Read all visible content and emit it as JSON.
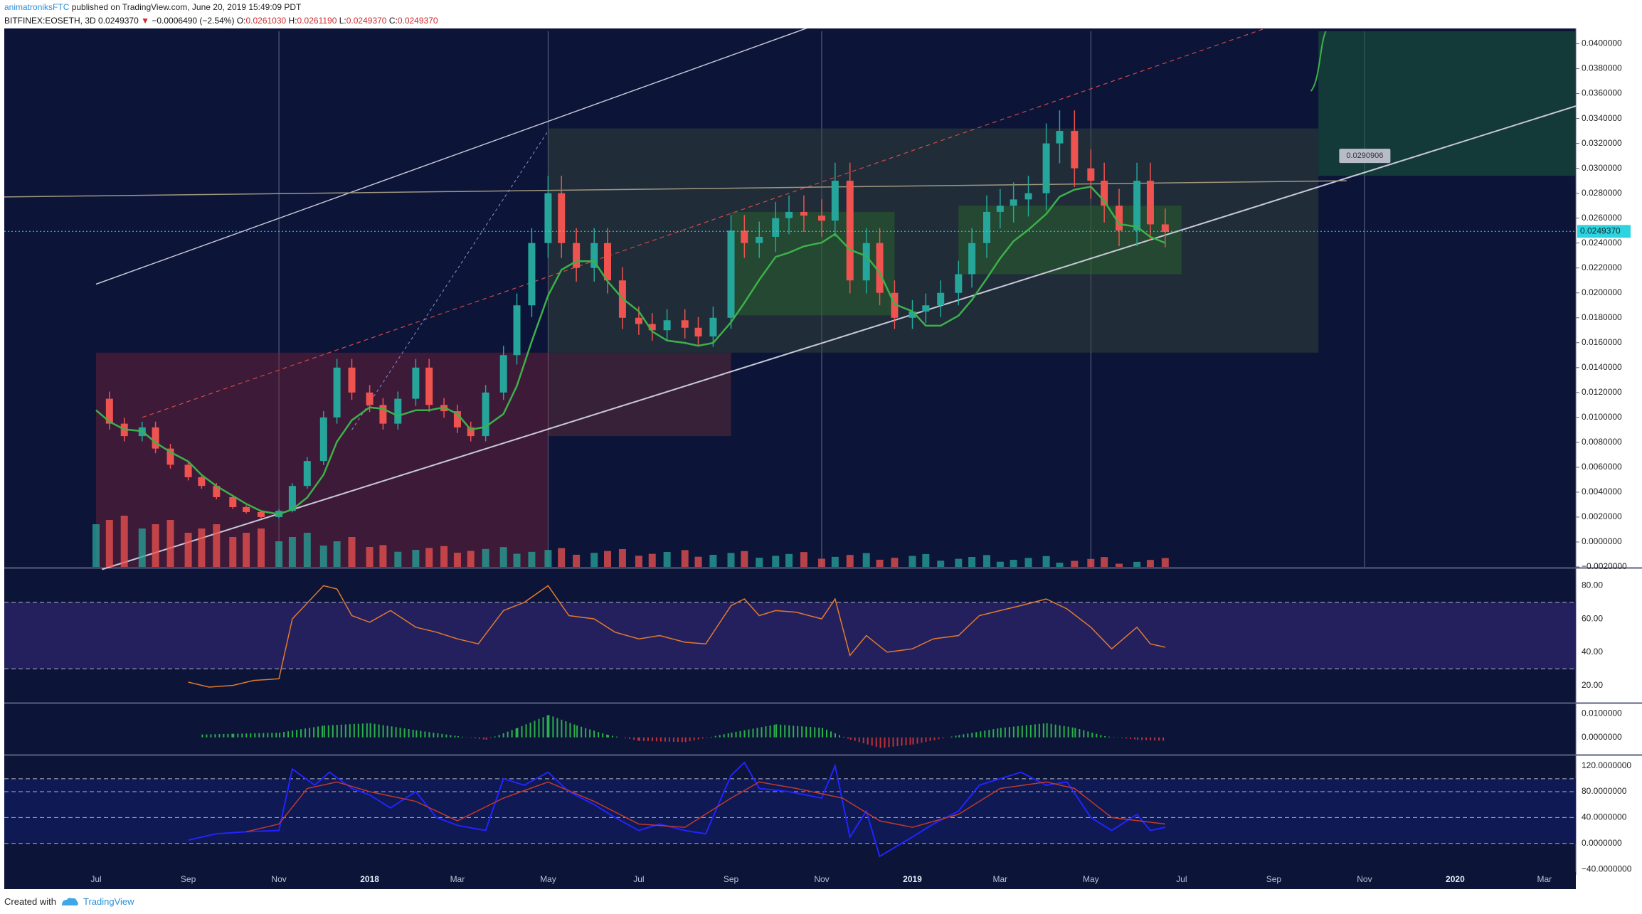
{
  "header": {
    "user": "animatroniksFTC",
    "published": "published on TradingView.com, June 20, 2019 15:49:09 PDT",
    "symbol": "BITFINEX:EOSETH, 3D",
    "last": "0.0249370",
    "change": "−0.0006490 (−2.54%)",
    "o_label": "O:",
    "o": "0.0261030",
    "h_label": "H:",
    "h": "0.0261190",
    "l_label": "L:",
    "l": "0.0249370",
    "c_label": "C:",
    "c": "0.0249370"
  },
  "footer": {
    "created_with": "Created with",
    "brand": "TradingView"
  },
  "colors": {
    "background": "#0c1438",
    "up": "#26a69a",
    "down": "#ef5350",
    "rsi": "#e07a2e",
    "stoch_k": "#2323ff",
    "stoch_d": "#c0392b",
    "ma": "#3cb14a",
    "trend_line": "#c8c8d8",
    "price_tag": "#2dd4e0"
  },
  "chart_data": [
    {
      "type": "candlestick",
      "pane": "price",
      "ylim": [
        -0.002,
        0.041
      ],
      "y_ticks": [
        "0.0400000",
        "0.0380000",
        "0.0360000",
        "0.0340000",
        "0.0320000",
        "0.0300000",
        "0.0280000",
        "0.0260000",
        "0.0240000",
        "0.0220000",
        "0.0200000",
        "0.0180000",
        "0.0160000",
        "0.0140000",
        "0.0120000",
        "0.0100000",
        "0.0080000",
        "0.0060000",
        "0.0040000",
        "0.0020000",
        "0.0000000",
        "−0.0020000"
      ],
      "x_ticks": [
        "Jul",
        "Sep",
        "Nov",
        "2018",
        "Mar",
        "May",
        "Jul",
        "Sep",
        "Nov",
        "2019",
        "Mar",
        "May",
        "Jul",
        "Sep",
        "Nov",
        "2020",
        "Mar"
      ],
      "x_ticks_bold": [
        "2018",
        "2019",
        "2020"
      ],
      "current_price_label": "0.0249370",
      "annotation_label": "0.0290906",
      "series": [
        {
          "name": "close",
          "points": [
            [
              "2017-07-01",
              0.0115
            ],
            [
              "2017-07-10",
              0.0095
            ],
            [
              "2017-07-20",
              0.0085
            ],
            [
              "2017-08-01",
              0.0092
            ],
            [
              "2017-08-10",
              0.0075
            ],
            [
              "2017-08-20",
              0.0062
            ],
            [
              "2017-09-01",
              0.0052
            ],
            [
              "2017-09-10",
              0.0045
            ],
            [
              "2017-09-20",
              0.0036
            ],
            [
              "2017-10-01",
              0.0028
            ],
            [
              "2017-10-10",
              0.0024
            ],
            [
              "2017-10-20",
              0.002
            ],
            [
              "2017-11-01",
              0.0025
            ],
            [
              "2017-11-10",
              0.0045
            ],
            [
              "2017-11-20",
              0.0065
            ],
            [
              "2017-12-01",
              0.01
            ],
            [
              "2017-12-10",
              0.014
            ],
            [
              "2017-12-20",
              0.012
            ],
            [
              "2018-01-01",
              0.011
            ],
            [
              "2018-01-10",
              0.0095
            ],
            [
              "2018-01-20",
              0.0115
            ],
            [
              "2018-02-01",
              0.014
            ],
            [
              "2018-02-10",
              0.011
            ],
            [
              "2018-02-20",
              0.0105
            ],
            [
              "2018-03-01",
              0.0092
            ],
            [
              "2018-03-10",
              0.0085
            ],
            [
              "2018-03-20",
              0.012
            ],
            [
              "2018-04-01",
              0.015
            ],
            [
              "2018-04-10",
              0.019
            ],
            [
              "2018-04-20",
              0.024
            ],
            [
              "2018-05-01",
              0.028
            ],
            [
              "2018-05-10",
              0.024
            ],
            [
              "2018-05-20",
              0.022
            ],
            [
              "2018-06-01",
              0.024
            ],
            [
              "2018-06-10",
              0.021
            ],
            [
              "2018-06-20",
              0.018
            ],
            [
              "2018-07-01",
              0.0175
            ],
            [
              "2018-07-10",
              0.017
            ],
            [
              "2018-07-20",
              0.0178
            ],
            [
              "2018-08-01",
              0.0172
            ],
            [
              "2018-08-10",
              0.0165
            ],
            [
              "2018-08-20",
              0.018
            ],
            [
              "2018-09-01",
              0.025
            ],
            [
              "2018-09-10",
              0.024
            ],
            [
              "2018-09-20",
              0.0245
            ],
            [
              "2018-10-01",
              0.026
            ],
            [
              "2018-10-10",
              0.0265
            ],
            [
              "2018-10-20",
              0.0262
            ],
            [
              "2018-11-01",
              0.0258
            ],
            [
              "2018-11-10",
              0.029
            ],
            [
              "2018-11-20",
              0.021
            ],
            [
              "2018-12-01",
              0.024
            ],
            [
              "2018-12-10",
              0.02
            ],
            [
              "2018-12-20",
              0.018
            ],
            [
              "2019-01-01",
              0.0185
            ],
            [
              "2019-01-10",
              0.019
            ],
            [
              "2019-01-20",
              0.02
            ],
            [
              "2019-02-01",
              0.0215
            ],
            [
              "2019-02-10",
              0.024
            ],
            [
              "2019-02-20",
              0.0265
            ],
            [
              "2019-03-01",
              0.027
            ],
            [
              "2019-03-10",
              0.0275
            ],
            [
              "2019-03-20",
              0.028
            ],
            [
              "2019-04-01",
              0.032
            ],
            [
              "2019-04-10",
              0.033
            ],
            [
              "2019-04-20",
              0.03
            ],
            [
              "2019-05-01",
              0.029
            ],
            [
              "2019-05-10",
              0.027
            ],
            [
              "2019-05-20",
              0.025
            ],
            [
              "2019-06-01",
              0.029
            ],
            [
              "2019-06-10",
              0.0255
            ],
            [
              "2019-06-20",
              0.0249
            ]
          ]
        }
      ]
    },
    {
      "type": "line",
      "pane": "rsi",
      "ylim": [
        10,
        90
      ],
      "y_ticks": [
        "80.00",
        "60.00",
        "40.00",
        "20.00"
      ],
      "bands": [
        30,
        70
      ],
      "series": [
        {
          "name": "RSI",
          "points": [
            [
              "2017-09-01",
              22
            ],
            [
              "2017-09-15",
              19
            ],
            [
              "2017-10-01",
              20
            ],
            [
              "2017-10-15",
              23
            ],
            [
              "2017-11-01",
              24
            ],
            [
              "2017-11-10",
              60
            ],
            [
              "2017-12-01",
              80
            ],
            [
              "2017-12-10",
              78
            ],
            [
              "2017-12-20",
              62
            ],
            [
              "2018-01-01",
              58
            ],
            [
              "2018-01-15",
              65
            ],
            [
              "2018-02-01",
              55
            ],
            [
              "2018-02-15",
              52
            ],
            [
              "2018-03-01",
              48
            ],
            [
              "2018-03-15",
              45
            ],
            [
              "2018-04-01",
              65
            ],
            [
              "2018-04-15",
              70
            ],
            [
              "2018-05-01",
              80
            ],
            [
              "2018-05-15",
              62
            ],
            [
              "2018-06-01",
              60
            ],
            [
              "2018-06-15",
              52
            ],
            [
              "2018-07-01",
              48
            ],
            [
              "2018-07-15",
              50
            ],
            [
              "2018-08-01",
              46
            ],
            [
              "2018-08-15",
              45
            ],
            [
              "2018-09-01",
              68
            ],
            [
              "2018-09-10",
              72
            ],
            [
              "2018-09-20",
              62
            ],
            [
              "2018-10-01",
              65
            ],
            [
              "2018-10-15",
              64
            ],
            [
              "2018-11-01",
              60
            ],
            [
              "2018-11-10",
              72
            ],
            [
              "2018-11-20",
              38
            ],
            [
              "2018-12-01",
              50
            ],
            [
              "2018-12-15",
              40
            ],
            [
              "2019-01-01",
              42
            ],
            [
              "2019-01-15",
              48
            ],
            [
              "2019-02-01",
              50
            ],
            [
              "2019-02-15",
              62
            ],
            [
              "2019-03-01",
              65
            ],
            [
              "2019-03-15",
              68
            ],
            [
              "2019-04-01",
              72
            ],
            [
              "2019-04-15",
              66
            ],
            [
              "2019-05-01",
              55
            ],
            [
              "2019-05-15",
              42
            ],
            [
              "2019-06-01",
              55
            ],
            [
              "2019-06-10",
              45
            ],
            [
              "2019-06-20",
              43
            ]
          ]
        }
      ]
    },
    {
      "type": "bar",
      "pane": "momentum",
      "ylim": [
        -0.007,
        0.014
      ],
      "y_ticks": [
        "0.0100000",
        "0.0000000"
      ],
      "series": [
        {
          "name": "histogram",
          "points": [
            [
              "2017-09-10",
              0.0012
            ],
            [
              "2017-10-01",
              0.0015
            ],
            [
              "2017-11-01",
              0.002
            ],
            [
              "2017-12-01",
              0.005
            ],
            [
              "2018-01-01",
              0.006
            ],
            [
              "2018-02-01",
              0.003
            ],
            [
              "2018-03-01",
              0.0005
            ],
            [
              "2018-03-20",
              -0.001
            ],
            [
              "2018-04-10",
              0.004
            ],
            [
              "2018-05-01",
              0.0095
            ],
            [
              "2018-05-20",
              0.005
            ],
            [
              "2018-06-10",
              0.001
            ],
            [
              "2018-07-01",
              -0.0015
            ],
            [
              "2018-08-01",
              -0.002
            ],
            [
              "2018-09-01",
              0.002
            ],
            [
              "2018-10-01",
              0.0055
            ],
            [
              "2018-11-01",
              0.004
            ],
            [
              "2018-11-20",
              -0.001
            ],
            [
              "2018-12-10",
              -0.0045
            ],
            [
              "2019-01-01",
              -0.003
            ],
            [
              "2019-02-01",
              0.001
            ],
            [
              "2019-03-01",
              0.004
            ],
            [
              "2019-04-01",
              0.006
            ],
            [
              "2019-04-20",
              0.004
            ],
            [
              "2019-05-10",
              0.0005
            ],
            [
              "2019-06-01",
              -0.001
            ],
            [
              "2019-06-20",
              -0.0015
            ]
          ]
        }
      ]
    },
    {
      "type": "line",
      "pane": "stoch",
      "ylim": [
        -42,
        135
      ],
      "y_ticks": [
        "120.0000000",
        "80.0000000",
        "40.0000000",
        "0.0000000",
        "−40.0000000"
      ],
      "bands": [
        0,
        40,
        80
      ],
      "series": [
        {
          "name": "K",
          "points": [
            [
              "2017-09-01",
              5
            ],
            [
              "2017-09-20",
              15
            ],
            [
              "2017-10-10",
              18
            ],
            [
              "2017-11-01",
              20
            ],
            [
              "2017-11-10",
              115
            ],
            [
              "2017-11-25",
              90
            ],
            [
              "2017-12-05",
              110
            ],
            [
              "2017-12-20",
              85
            ],
            [
              "2018-01-01",
              75
            ],
            [
              "2018-01-15",
              55
            ],
            [
              "2018-02-01",
              80
            ],
            [
              "2018-02-15",
              40
            ],
            [
              "2018-03-01",
              28
            ],
            [
              "2018-03-20",
              20
            ],
            [
              "2018-04-01",
              100
            ],
            [
              "2018-04-15",
              90
            ],
            [
              "2018-05-01",
              110
            ],
            [
              "2018-05-15",
              80
            ],
            [
              "2018-06-01",
              60
            ],
            [
              "2018-06-15",
              40
            ],
            [
              "2018-07-01",
              20
            ],
            [
              "2018-07-15",
              30
            ],
            [
              "2018-08-01",
              20
            ],
            [
              "2018-08-15",
              15
            ],
            [
              "2018-09-01",
              105
            ],
            [
              "2018-09-10",
              125
            ],
            [
              "2018-09-20",
              85
            ],
            [
              "2018-10-10",
              80
            ],
            [
              "2018-11-01",
              70
            ],
            [
              "2018-11-10",
              120
            ],
            [
              "2018-11-20",
              10
            ],
            [
              "2018-12-01",
              50
            ],
            [
              "2018-12-10",
              -20
            ],
            [
              "2019-01-01",
              10
            ],
            [
              "2019-01-15",
              30
            ],
            [
              "2019-02-01",
              50
            ],
            [
              "2019-02-15",
              90
            ],
            [
              "2019-03-01",
              100
            ],
            [
              "2019-03-15",
              110
            ],
            [
              "2019-04-01",
              90
            ],
            [
              "2019-04-15",
              95
            ],
            [
              "2019-05-01",
              40
            ],
            [
              "2019-05-15",
              20
            ],
            [
              "2019-06-01",
              45
            ],
            [
              "2019-06-10",
              20
            ],
            [
              "2019-06-20",
              25
            ]
          ]
        },
        {
          "name": "D",
          "points": [
            [
              "2017-10-10",
              18
            ],
            [
              "2017-11-01",
              30
            ],
            [
              "2017-11-20",
              85
            ],
            [
              "2017-12-10",
              95
            ],
            [
              "2018-01-01",
              80
            ],
            [
              "2018-02-01",
              65
            ],
            [
              "2018-03-01",
              35
            ],
            [
              "2018-04-01",
              70
            ],
            [
              "2018-05-01",
              95
            ],
            [
              "2018-06-01",
              65
            ],
            [
              "2018-07-01",
              30
            ],
            [
              "2018-08-01",
              25
            ],
            [
              "2018-09-01",
              70
            ],
            [
              "2018-09-20",
              95
            ],
            [
              "2018-10-15",
              85
            ],
            [
              "2018-11-15",
              70
            ],
            [
              "2018-12-10",
              35
            ],
            [
              "2019-01-01",
              25
            ],
            [
              "2019-02-01",
              45
            ],
            [
              "2019-03-01",
              85
            ],
            [
              "2019-04-01",
              95
            ],
            [
              "2019-04-20",
              85
            ],
            [
              "2019-05-15",
              40
            ],
            [
              "2019-06-20",
              30
            ]
          ]
        }
      ]
    }
  ]
}
